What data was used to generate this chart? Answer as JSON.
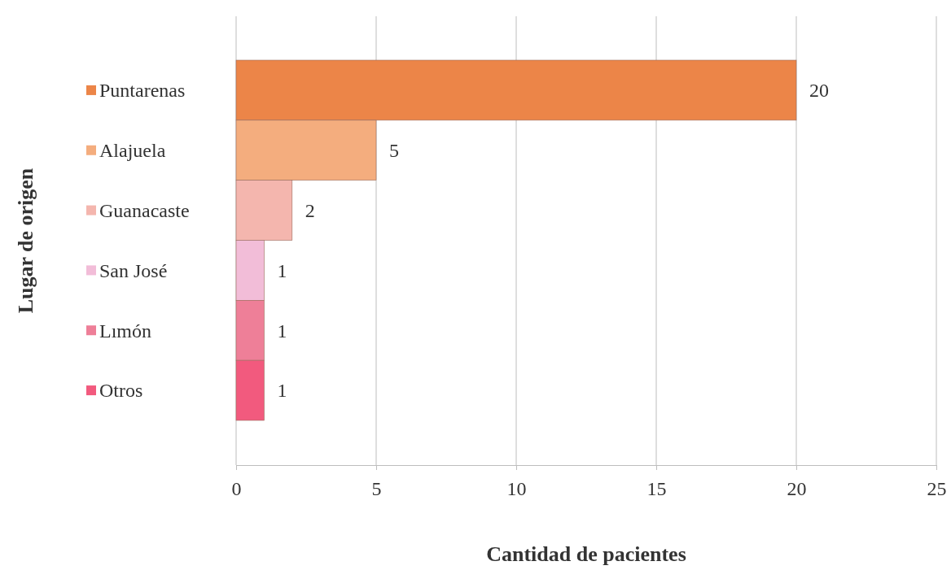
{
  "chart_data": {
    "type": "bar",
    "orientation": "horizontal",
    "xlabel": "Cantidad de pacientes",
    "ylabel": "Lugar de origen",
    "categories": [
      "Puntarenas",
      "Alajuela",
      "Guanacaste",
      "San José",
      "Lımón",
      "Otros"
    ],
    "values": [
      20,
      5,
      2,
      1,
      1,
      1
    ],
    "colors": [
      "#ec8548",
      "#f4ad7e",
      "#f4b6ae",
      "#f2bdd8",
      "#ee7f98",
      "#f25a7e"
    ],
    "xlim": [
      0,
      25
    ],
    "xticks": [
      0,
      5,
      10,
      15,
      20,
      25
    ],
    "grid": "x",
    "data_labels": true
  }
}
